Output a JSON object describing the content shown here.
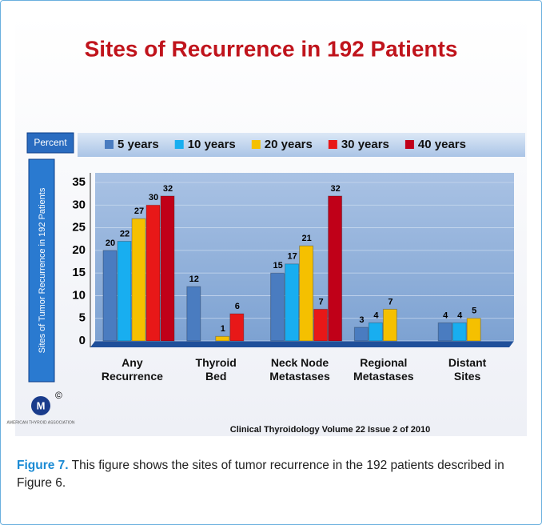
{
  "chart_data": {
    "type": "bar",
    "title": "Sites of Recurrence in 192 Patients",
    "ylabel": "Sites of Tumor Recurrence in 192 Patients",
    "unit_box": "Percent",
    "source": "Clinical Thyroidology Volume 22 Issue 2 of 2010",
    "logo": "AMERICAN THYROID ASSOCIATION",
    "logo_mark": "©",
    "categories": [
      "Any Recurrence",
      "Thyroid Bed",
      "Neck Node Metastases",
      "Regional Metastases",
      "Distant Sites"
    ],
    "series": [
      {
        "name": "5 years",
        "color": "#4a7cc0",
        "values": [
          20,
          12,
          15,
          3,
          4
        ]
      },
      {
        "name": "10 years",
        "color": "#18aef0",
        "values": [
          22,
          null,
          17,
          4,
          4
        ]
      },
      {
        "name": "20 years",
        "color": "#f5c000",
        "values": [
          27,
          1,
          21,
          7,
          5
        ]
      },
      {
        "name": "30 years",
        "color": "#e81818",
        "values": [
          30,
          6,
          7,
          null,
          null
        ]
      },
      {
        "name": "40 years",
        "color": "#c00018",
        "values": [
          32,
          null,
          32,
          null,
          null
        ]
      }
    ],
    "ylim": [
      0,
      35
    ],
    "yticks": [
      0,
      5,
      10,
      15,
      20,
      25,
      30,
      35
    ],
    "grid": true
  },
  "caption": {
    "label": "Figure 7.",
    "text": "This figure shows the sites of tumor recurrence in the 192 patients described in Figure 6."
  }
}
